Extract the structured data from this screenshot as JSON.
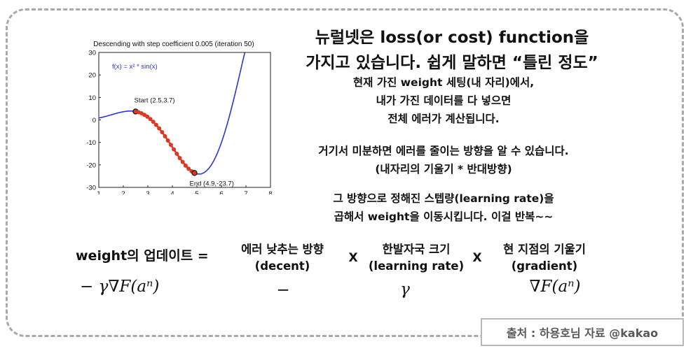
{
  "slide": {
    "heading_line1": "뉴럴넷은 loss(or cost) function을",
    "heading_line2": "가지고 있습니다. 쉽게 말하면 “틀린 정도”",
    "paragraph1": [
      "현재 가진 weight 세팅(내 자리)에서,",
      "내가 가진 데이터를 다 넣으면",
      "전체 에러가 계산됩니다."
    ],
    "paragraph2": [
      "거기서 미분하면 에러를 줄이는 방향을 알 수 있습니다.",
      "(내자리의 기울기 * 반대방향)"
    ],
    "paragraph3": [
      "그 방향으로 정해진 스텝량(learning rate)을",
      "곱해서 weight을 이동시킵니다. 이걸 반복~~"
    ],
    "update": {
      "label": "weight의 업데이트  =",
      "term1_label": "에러 낮추는 방향",
      "term1_en": "(decent)",
      "times": "X",
      "term2_label": "한발자국 크기",
      "term2_en": "(learning rate)",
      "term3_label": "현 지점의 기울기",
      "term3_en": "(gradient)",
      "formula_full": "− γ∇F(aⁿ)",
      "formula_minus": "−",
      "formula_gamma": "γ",
      "formula_grad": "∇F(aⁿ)"
    },
    "credit": "출처 : 하용호님 자료 @kakao"
  },
  "chart_data": {
    "type": "line",
    "title": "Descending with step coefficient 0.005 (iteration 50)",
    "legend_text": "f(x) = x² * sin(x)",
    "xlim": [
      1,
      8
    ],
    "ylim": [
      -30,
      30
    ],
    "xticks": [
      1,
      2,
      3,
      4,
      5,
      6,
      7,
      8
    ],
    "yticks": [
      -30,
      -20,
      -10,
      0,
      10,
      20,
      30
    ],
    "series": [
      {
        "name": "f(x) = x² * sin(x)",
        "color": "#2b35d9",
        "function": "x^2*sin(x)",
        "x_range": [
          1,
          8
        ]
      }
    ],
    "descent_points_x": [
      2.5,
      2.62,
      2.74,
      2.86,
      2.98,
      3.1,
      3.22,
      3.34,
      3.46,
      3.58,
      3.7,
      3.82,
      3.94,
      4.06,
      4.18,
      4.3,
      4.42,
      4.54,
      4.66,
      4.78,
      4.9
    ],
    "descent_color": "#d93a26",
    "annotations": [
      {
        "text": "Start (2.5,3.7)",
        "x": 2.5,
        "y": 3.7
      },
      {
        "text": "End (4.9,-23.7)",
        "x": 4.9,
        "y": -23.7
      }
    ]
  }
}
